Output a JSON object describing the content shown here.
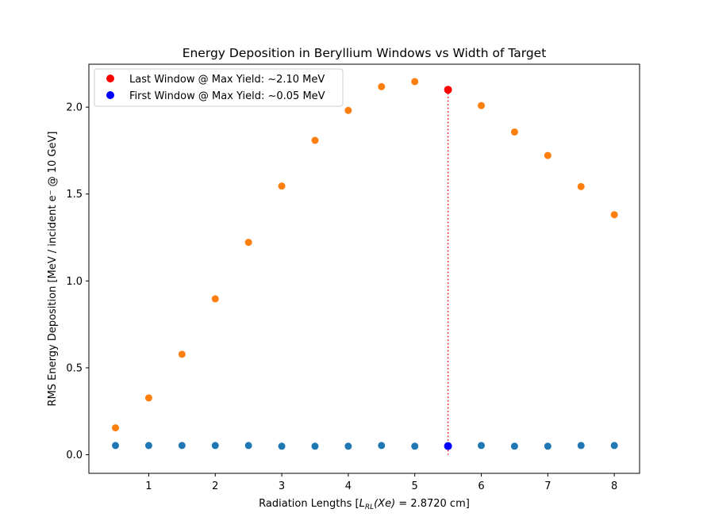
{
  "chart_data": {
    "type": "scatter",
    "title": "Energy Deposition in Beryllium Windows vs Width of Target",
    "xlabel": "Radiation Lengths [L_RL(Xe) = 2.8720 cm]",
    "xlabel_parts": {
      "prefix": "Radiation Lengths [",
      "L": "L",
      "sub": "RL",
      "arg": "(Xe)",
      "eq": " = 2.8720 cm]"
    },
    "ylabel": "RMS Energy Deposition [MeV / incident e⁻ @ 10 GeV]",
    "xlim": [
      0.1,
      8.38
    ],
    "ylim": [
      -0.107,
      2.247
    ],
    "xticks": [
      1,
      2,
      3,
      4,
      5,
      6,
      7,
      8
    ],
    "xtick_labels": [
      "1",
      "2",
      "3",
      "4",
      "5",
      "6",
      "7",
      "8"
    ],
    "yticks": [
      0.0,
      0.5,
      1.0,
      1.5,
      2.0
    ],
    "ytick_labels": [
      "0.0",
      "0.5",
      "1.0",
      "1.5",
      "2.0"
    ],
    "grid": false,
    "legend_position": "top-left",
    "series": [
      {
        "color": "#ff7f0e",
        "x": [
          0.5,
          1.0,
          1.5,
          2.0,
          2.5,
          3.0,
          3.5,
          4.0,
          4.5,
          5.0,
          6.0,
          6.5,
          7.0,
          7.5,
          8.0
        ],
        "y": [
          0.155,
          0.327,
          0.578,
          0.897,
          1.222,
          1.546,
          1.809,
          1.981,
          2.118,
          2.147,
          2.009,
          1.857,
          1.722,
          1.543,
          1.381
        ]
      },
      {
        "color": "#1f77b4",
        "x": [
          0.5,
          1.0,
          1.5,
          2.0,
          2.5,
          3.0,
          3.5,
          4.0,
          4.5,
          5.0,
          6.0,
          6.5,
          7.0,
          7.5,
          8.0
        ],
        "y": [
          0.053,
          0.053,
          0.053,
          0.053,
          0.053,
          0.049,
          0.049,
          0.049,
          0.053,
          0.049,
          0.053,
          0.049,
          0.049,
          0.053,
          0.053
        ]
      }
    ],
    "highlights": [
      {
        "name": "Last Window @ Max Yield: ~2.10 MeV",
        "color": "#ff0000",
        "x": 5.5,
        "y": 2.1
      },
      {
        "name": "First Window @ Max Yield: ~0.05 MeV",
        "color": "#0000ff",
        "x": 5.5,
        "y": 0.05
      }
    ],
    "vline": {
      "x": 5.5,
      "y_from": 0.0,
      "y_to": 2.1,
      "color": "#ff0000",
      "style": "dotted"
    }
  }
}
